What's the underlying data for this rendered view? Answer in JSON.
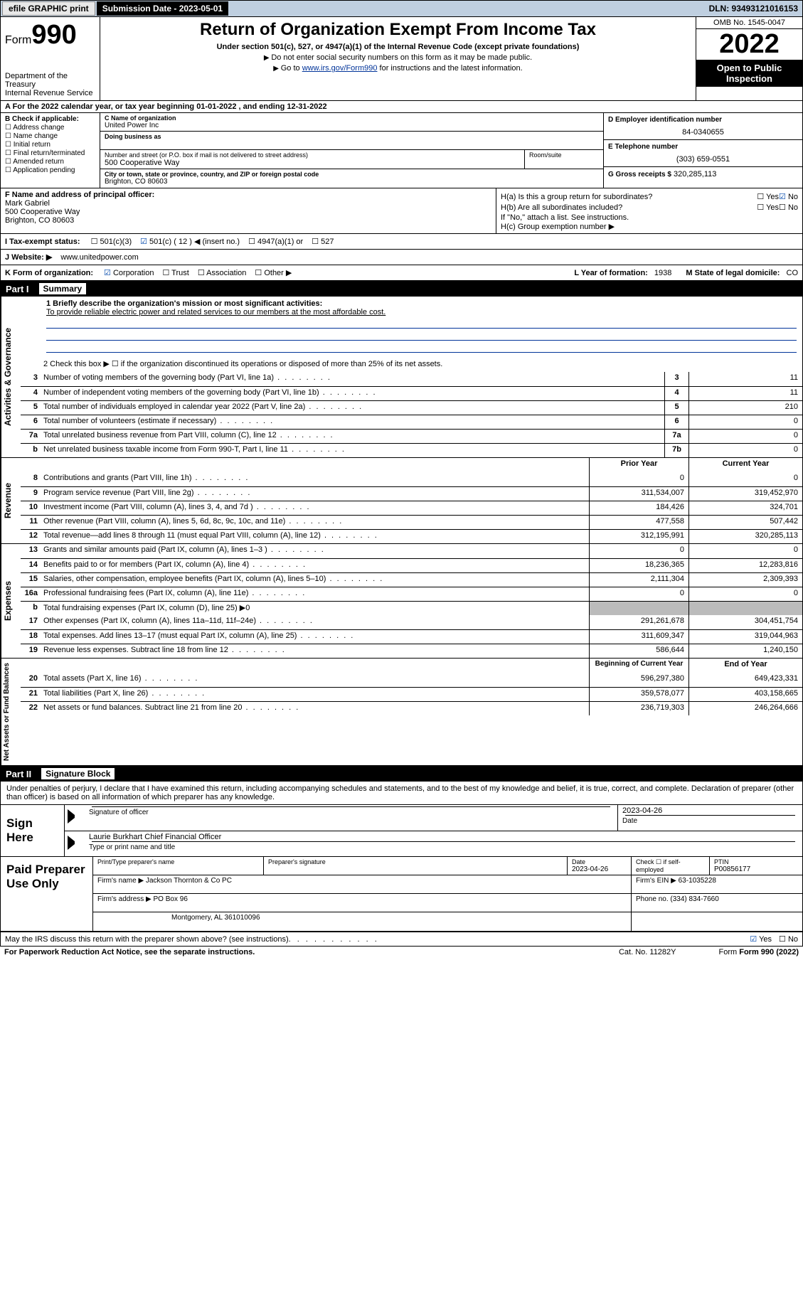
{
  "topbar": {
    "efile": "efile GRAPHIC print",
    "subdate_label": "Submission Date - 2023-05-01",
    "dln": "DLN: 93493121016153"
  },
  "header": {
    "form_label": "Form",
    "form_num": "990",
    "dept": "Department of the Treasury",
    "irs": "Internal Revenue Service",
    "title": "Return of Organization Exempt From Income Tax",
    "subtitle": "Under section 501(c), 527, or 4947(a)(1) of the Internal Revenue Code (except private foundations)",
    "note1": "Do not enter social security numbers on this form as it may be made public.",
    "note2_pre": "Go to ",
    "note2_link": "www.irs.gov/Form990",
    "note2_post": " for instructions and the latest information.",
    "omb": "OMB No. 1545-0047",
    "year": "2022",
    "openpub": "Open to Public Inspection"
  },
  "row_a": "A  For the 2022 calendar year, or tax year beginning 01-01-2022   , and ending 12-31-2022",
  "col_b": {
    "title": "B Check if applicable:",
    "items": [
      "Address change",
      "Name change",
      "Initial return",
      "Final return/terminated",
      "Amended return",
      "Application pending"
    ]
  },
  "col_c": {
    "name_lbl": "C Name of organization",
    "name": "United Power Inc",
    "dba_lbl": "Doing business as",
    "dba": "",
    "street_lbl": "Number and street (or P.O. box if mail is not delivered to street address)",
    "street": "500 Cooperative Way",
    "room_lbl": "Room/suite",
    "room": "",
    "city_lbl": "City or town, state or province, country, and ZIP or foreign postal code",
    "city": "Brighton, CO  80603"
  },
  "col_d": {
    "ein_lbl": "D Employer identification number",
    "ein": "84-0340655",
    "phone_lbl": "E Telephone number",
    "phone": "(303) 659-0551",
    "gross_lbl": "G Gross receipts $",
    "gross": "320,285,113"
  },
  "col_f": {
    "lbl": "F Name and address of principal officer:",
    "name": "Mark Gabriel",
    "addr1": "500 Cooperative Way",
    "addr2": "Brighton, CO  80603"
  },
  "col_h": {
    "ha_lbl": "H(a)  Is this a group return for subordinates?",
    "ha_yes": "Yes",
    "ha_no": "No",
    "hb_lbl": "H(b)  Are all subordinates included?",
    "hb_yes": "Yes",
    "hb_no": "No",
    "hb_note": "If \"No,\" attach a list. See instructions.",
    "hc_lbl": "H(c)  Group exemption number ▶"
  },
  "row_i": {
    "lbl": "I    Tax-exempt status:",
    "c3": "501(c)(3)",
    "c12": "501(c) ( 12 ) ◀ (insert no.)",
    "a1": "4947(a)(1) or",
    "s527": "527"
  },
  "row_j": {
    "lbl": "J   Website: ▶",
    "val": "www.unitedpower.com"
  },
  "row_k": {
    "lbl": "K Form of organization:",
    "corp": "Corporation",
    "trust": "Trust",
    "assoc": "Association",
    "other": "Other ▶",
    "l_lbl": "L Year of formation:",
    "l_val": "1938",
    "m_lbl": "M State of legal domicile:",
    "m_val": "CO"
  },
  "parts": {
    "p1": "Part I",
    "p1t": "Summary",
    "p2": "Part II",
    "p2t": "Signature Block"
  },
  "summary": {
    "q1_lbl": "1  Briefly describe the organization's mission or most significant activities:",
    "q1_text": "To provide reliable electric power and related services to our members at the most affordable cost.",
    "q2": "2   Check this box ▶ ☐  if the organization discontinued its operations or disposed of more than 25% of its net assets.",
    "side_ag": "Activities & Governance",
    "side_rev": "Revenue",
    "side_exp": "Expenses",
    "side_na": "Net Assets or Fund Balances",
    "rows_single": [
      {
        "n": "3",
        "d": "Number of voting members of the governing body (Part VI, line 1a)",
        "box": "3",
        "v": "11"
      },
      {
        "n": "4",
        "d": "Number of independent voting members of the governing body (Part VI, line 1b)",
        "box": "4",
        "v": "11"
      },
      {
        "n": "5",
        "d": "Total number of individuals employed in calendar year 2022 (Part V, line 2a)",
        "box": "5",
        "v": "210"
      },
      {
        "n": "6",
        "d": "Total number of volunteers (estimate if necessary)",
        "box": "6",
        "v": "0"
      },
      {
        "n": "7a",
        "d": "Total unrelated business revenue from Part VIII, column (C), line 12",
        "box": "7a",
        "v": "0"
      },
      {
        "n": "b",
        "d": "Net unrelated business taxable income from Form 990-T, Part I, line 11",
        "box": "7b",
        "v": "0"
      }
    ],
    "hdr_prior": "Prior Year",
    "hdr_curr": "Current Year",
    "rows_rev": [
      {
        "n": "8",
        "d": "Contributions and grants (Part VIII, line 1h)",
        "p": "0",
        "c": "0"
      },
      {
        "n": "9",
        "d": "Program service revenue (Part VIII, line 2g)",
        "p": "311,534,007",
        "c": "319,452,970"
      },
      {
        "n": "10",
        "d": "Investment income (Part VIII, column (A), lines 3, 4, and 7d )",
        "p": "184,426",
        "c": "324,701"
      },
      {
        "n": "11",
        "d": "Other revenue (Part VIII, column (A), lines 5, 6d, 8c, 9c, 10c, and 11e)",
        "p": "477,558",
        "c": "507,442"
      },
      {
        "n": "12",
        "d": "Total revenue—add lines 8 through 11 (must equal Part VIII, column (A), line 12)",
        "p": "312,195,991",
        "c": "320,285,113"
      }
    ],
    "rows_exp": [
      {
        "n": "13",
        "d": "Grants and similar amounts paid (Part IX, column (A), lines 1–3 )",
        "p": "0",
        "c": "0"
      },
      {
        "n": "14",
        "d": "Benefits paid to or for members (Part IX, column (A), line 4)",
        "p": "18,236,365",
        "c": "12,283,816"
      },
      {
        "n": "15",
        "d": "Salaries, other compensation, employee benefits (Part IX, column (A), lines 5–10)",
        "p": "2,111,304",
        "c": "2,309,393"
      },
      {
        "n": "16a",
        "d": "Professional fundraising fees (Part IX, column (A), line 11e)",
        "p": "0",
        "c": "0"
      }
    ],
    "row16b": {
      "n": "b",
      "d": "Total fundraising expenses (Part IX, column (D), line 25) ▶0"
    },
    "rows_exp2": [
      {
        "n": "17",
        "d": "Other expenses (Part IX, column (A), lines 11a–11d, 11f–24e)",
        "p": "291,261,678",
        "c": "304,451,754"
      },
      {
        "n": "18",
        "d": "Total expenses. Add lines 13–17 (must equal Part IX, column (A), line 25)",
        "p": "311,609,347",
        "c": "319,044,963"
      },
      {
        "n": "19",
        "d": "Revenue less expenses. Subtract line 18 from line 12",
        "p": "586,644",
        "c": "1,240,150"
      }
    ],
    "hdr_beg": "Beginning of Current Year",
    "hdr_end": "End of Year",
    "rows_na": [
      {
        "n": "20",
        "d": "Total assets (Part X, line 16)",
        "p": "596,297,380",
        "c": "649,423,331"
      },
      {
        "n": "21",
        "d": "Total liabilities (Part X, line 26)",
        "p": "359,578,077",
        "c": "403,158,665"
      },
      {
        "n": "22",
        "d": "Net assets or fund balances. Subtract line 21 from line 20",
        "p": "236,719,303",
        "c": "246,264,666"
      }
    ]
  },
  "sig": {
    "penalty": "Under penalties of perjury, I declare that I have examined this return, including accompanying schedules and statements, and to the best of my knowledge and belief, it is true, correct, and complete. Declaration of preparer (other than officer) is based on all information of which preparer has any knowledge.",
    "sign_here": "Sign Here",
    "sig_officer": "Signature of officer",
    "sig_date_lbl": "Date",
    "sig_date": "2023-04-26",
    "officer_name": "Laurie Burkhart Chief Financial Officer",
    "type_name": "Type or print name and title",
    "paid": "Paid Preparer Use Only",
    "prep_name_lbl": "Print/Type preparer's name",
    "prep_sig_lbl": "Preparer's signature",
    "prep_date_lbl": "Date",
    "prep_date": "2023-04-26",
    "check_if": "Check ☐ if self-employed",
    "ptin_lbl": "PTIN",
    "ptin": "P00856177",
    "firm_name_lbl": "Firm's name   ▶",
    "firm_name": "Jackson Thornton & Co PC",
    "firm_ein_lbl": "Firm's EIN ▶",
    "firm_ein": "63-1035228",
    "firm_addr_lbl": "Firm's address ▶",
    "firm_addr1": "PO Box 96",
    "firm_addr2": "Montgomery, AL  361010096",
    "firm_phone_lbl": "Phone no.",
    "firm_phone": "(334) 834-7660"
  },
  "footer": {
    "discuss": "May the IRS discuss this return with the preparer shown above? (see instructions)",
    "yes": "Yes",
    "no": "No",
    "pra": "For Paperwork Reduction Act Notice, see the separate instructions.",
    "cat": "Cat. No. 11282Y",
    "form": "Form 990 (2022)"
  }
}
